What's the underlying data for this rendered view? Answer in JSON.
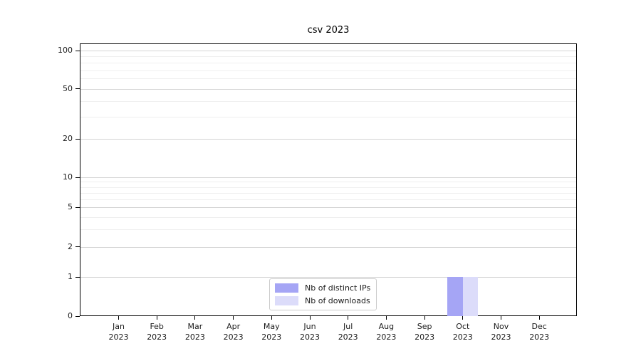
{
  "chart_data": {
    "type": "bar",
    "title": "csv 2023",
    "categories": [
      {
        "month": "Jan",
        "year": "2023"
      },
      {
        "month": "Feb",
        "year": "2023"
      },
      {
        "month": "Mar",
        "year": "2023"
      },
      {
        "month": "Apr",
        "year": "2023"
      },
      {
        "month": "May",
        "year": "2023"
      },
      {
        "month": "Jun",
        "year": "2023"
      },
      {
        "month": "Jul",
        "year": "2023"
      },
      {
        "month": "Aug",
        "year": "2023"
      },
      {
        "month": "Sep",
        "year": "2023"
      },
      {
        "month": "Oct",
        "year": "2023"
      },
      {
        "month": "Nov",
        "year": "2023"
      },
      {
        "month": "Dec",
        "year": "2023"
      }
    ],
    "series": [
      {
        "name": "Nb of distinct IPs",
        "color": "#a5a5f5",
        "values": [
          0,
          0,
          0,
          0,
          0,
          0,
          0,
          0,
          0,
          1,
          0,
          0
        ]
      },
      {
        "name": "Nb of downloads",
        "color": "#dcdcfa",
        "values": [
          0,
          0,
          0,
          0,
          0,
          0,
          0,
          0,
          0,
          1,
          0,
          0
        ]
      }
    ],
    "y_ticks": [
      0,
      1,
      2,
      5,
      10,
      20,
      50,
      100
    ],
    "y_minor_gridlines": [
      3,
      4,
      6,
      7,
      8,
      9,
      30,
      40,
      60,
      70,
      80,
      90
    ],
    "y_scale": "symlog",
    "ylim": [
      0,
      114
    ],
    "xlabel": "",
    "ylabel": "",
    "grid": "horizontal major+minor",
    "legend_position": "bottom-center",
    "colors": {
      "axis": "#000000",
      "grid_major": "#d4d4d4",
      "grid_minor": "#efefef",
      "text": "#1a1a1a",
      "legend_border": "#cccccc",
      "background": "#ffffff"
    }
  }
}
